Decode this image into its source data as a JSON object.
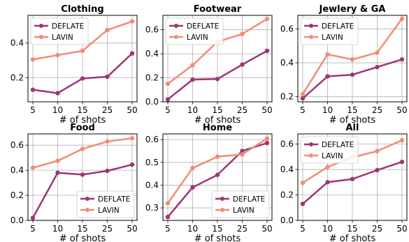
{
  "colors": {
    "DEFLATE": "#9e3577",
    "LAVIN": "#ef8d78"
  },
  "chart_data": [
    {
      "type": "line",
      "title": "Clothing",
      "xlabel": "# of shots",
      "ylabel": "",
      "categories": [
        "5",
        "10",
        "15",
        "25",
        "50"
      ],
      "ylim": [
        0.06,
        0.56
      ],
      "yticks": [
        0.2,
        0.4
      ],
      "yticklabels": [
        "0.2",
        "0.4"
      ],
      "legend": "top-left",
      "grid": true,
      "series": [
        {
          "name": "DEFLATE",
          "values": [
            0.13,
            0.11,
            0.195,
            0.205,
            0.34
          ]
        },
        {
          "name": "LAVIN",
          "values": [
            0.305,
            0.33,
            0.355,
            0.475,
            0.525
          ]
        }
      ]
    },
    {
      "type": "line",
      "title": "Footwear",
      "xlabel": "# of shots",
      "ylabel": "",
      "categories": [
        "5",
        "10",
        "15",
        "25",
        "50"
      ],
      "ylim": [
        0.0,
        0.72
      ],
      "yticks": [
        0.0,
        0.2,
        0.4,
        0.6
      ],
      "yticklabels": [
        "0.0",
        "0.2",
        "0.4",
        "0.6"
      ],
      "legend": "top-left",
      "grid": true,
      "series": [
        {
          "name": "DEFLATE",
          "values": [
            0.02,
            0.185,
            0.19,
            0.31,
            0.425
          ]
        },
        {
          "name": "LAVIN",
          "values": [
            0.15,
            0.305,
            0.5,
            0.565,
            0.69
          ]
        }
      ]
    },
    {
      "type": "line",
      "title": "Jewlery & GA",
      "xlabel": "# of shots",
      "ylabel": "",
      "categories": [
        "5",
        "10",
        "15",
        "25",
        "50"
      ],
      "ylim": [
        0.17,
        0.68
      ],
      "yticks": [
        0.2,
        0.4,
        0.6
      ],
      "yticklabels": [
        "0.2",
        "0.4",
        "0.6"
      ],
      "legend": "top-left",
      "grid": true,
      "series": [
        {
          "name": "DEFLATE",
          "values": [
            0.19,
            0.32,
            0.33,
            0.375,
            0.42
          ]
        },
        {
          "name": "LAVIN",
          "values": [
            0.215,
            0.45,
            0.42,
            0.46,
            0.66
          ]
        }
      ]
    },
    {
      "type": "line",
      "title": "Food",
      "xlabel": "# of shots",
      "ylabel": "",
      "categories": [
        "5",
        "10",
        "15",
        "25",
        "50"
      ],
      "ylim": [
        0.0,
        0.69
      ],
      "yticks": [
        0.0,
        0.2,
        0.4,
        0.6
      ],
      "yticklabels": [
        "0.0",
        "0.2",
        "0.4",
        "0.6"
      ],
      "legend": "bottom-right",
      "grid": true,
      "series": [
        {
          "name": "DEFLATE",
          "values": [
            0.02,
            0.38,
            0.365,
            0.395,
            0.445
          ]
        },
        {
          "name": "LAVIN",
          "values": [
            0.42,
            0.475,
            0.57,
            0.63,
            0.655
          ]
        }
      ]
    },
    {
      "type": "line",
      "title": "Home",
      "xlabel": "# of shots",
      "ylabel": "",
      "categories": [
        "5",
        "10",
        "15",
        "25",
        "50"
      ],
      "ylim": [
        0.245,
        0.625
      ],
      "yticks": [
        0.3,
        0.4,
        0.5,
        0.6
      ],
      "yticklabels": [
        "0.3",
        "0.4",
        "0.5",
        "0.6"
      ],
      "legend": "bottom-right",
      "grid": true,
      "series": [
        {
          "name": "DEFLATE",
          "values": [
            0.26,
            0.39,
            0.445,
            0.55,
            0.585
          ]
        },
        {
          "name": "LAVIN",
          "values": [
            0.32,
            0.475,
            0.525,
            0.535,
            0.605
          ]
        }
      ]
    },
    {
      "type": "line",
      "title": "All",
      "xlabel": "# of shots",
      "ylabel": "",
      "categories": [
        "5",
        "10",
        "15",
        "25",
        "50"
      ],
      "ylim": [
        0.0,
        0.68
      ],
      "yticks": [
        0.0,
        0.2,
        0.4,
        0.6
      ],
      "yticklabels": [
        "0.0",
        "0.2",
        "0.4",
        "0.6"
      ],
      "legend": "top-left",
      "grid": true,
      "series": [
        {
          "name": "DEFLATE",
          "values": [
            0.13,
            0.3,
            0.325,
            0.395,
            0.46
          ]
        },
        {
          "name": "LAVIN",
          "values": [
            0.295,
            0.42,
            0.495,
            0.545,
            0.63
          ]
        }
      ]
    }
  ]
}
